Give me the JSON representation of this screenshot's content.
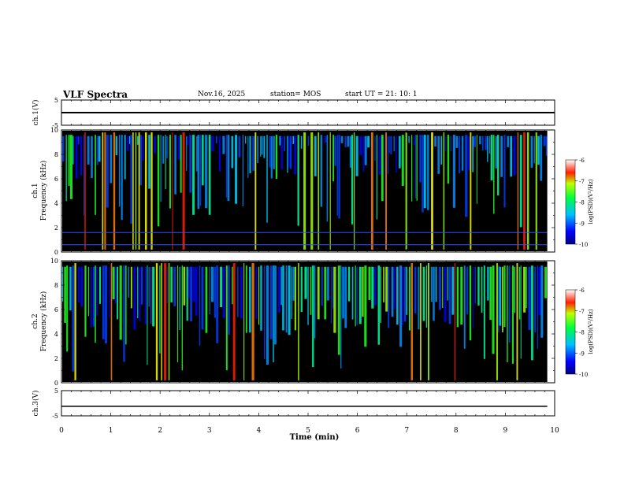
{
  "header": {
    "title": "VLF Spectra",
    "date": "Nov.16, 2025",
    "station": "station= MOS",
    "start_ut": "start  UT =   21: 10: 1"
  },
  "colors": {
    "background": "#000000",
    "spectrum_low": "#0000ff",
    "spectrum_high": "#ff0000",
    "trace": "#000000",
    "hum_line": "#3050ff"
  },
  "chart_data": [
    {
      "type": "line",
      "name": "ch1-waveform",
      "ylabel": "ch.1(V)",
      "ylim": [
        -5,
        5
      ],
      "yticks": [
        "5",
        "-5"
      ],
      "x": [
        0,
        10
      ],
      "values": [
        0,
        0
      ]
    },
    {
      "type": "heatmap",
      "name": "ch1-spectrogram",
      "ylabel": "ch.1\nFrequency (kHz)",
      "ylim": [
        0,
        10
      ],
      "yticks": [
        "0",
        "2",
        "4",
        "6",
        "8",
        "10"
      ],
      "xlim": [
        0,
        9.85
      ],
      "colorbar": {
        "label": "log(PSD)(V²/Hz)",
        "range": [
          -10,
          -6
        ],
        "ticks": [
          "-6",
          "-7",
          "-8",
          "-9",
          "-10"
        ]
      },
      "hum_lines_khz": [
        1.6,
        0.6
      ]
    },
    {
      "type": "heatmap",
      "name": "ch2-spectrogram",
      "ylabel": "ch.2\nFrequency (kHz)",
      "ylim": [
        0,
        10
      ],
      "yticks": [
        "0",
        "2",
        "4",
        "6",
        "8",
        "10"
      ],
      "xlim": [
        0,
        9.85
      ],
      "colorbar": {
        "label": "log(PSD)(V²/Hz)",
        "range": [
          -10,
          -6
        ],
        "ticks": [
          "-6",
          "-7",
          "-8",
          "-9",
          "-10"
        ]
      }
    },
    {
      "type": "line",
      "name": "ch3-waveform",
      "ylabel": "ch.3(V)",
      "ylim": [
        -5,
        5
      ],
      "yticks": [
        "5",
        "-5"
      ],
      "x": [
        0,
        9.85
      ],
      "values": [
        -1.2,
        -1.2
      ]
    }
  ],
  "xaxis": {
    "label": "Time (min)",
    "range": [
      0,
      10
    ],
    "ticks": [
      "0",
      "1",
      "2",
      "3",
      "4",
      "5",
      "6",
      "7",
      "8",
      "9",
      "10"
    ]
  },
  "colorbar_label": "log(PSD)(V²/Hz)"
}
